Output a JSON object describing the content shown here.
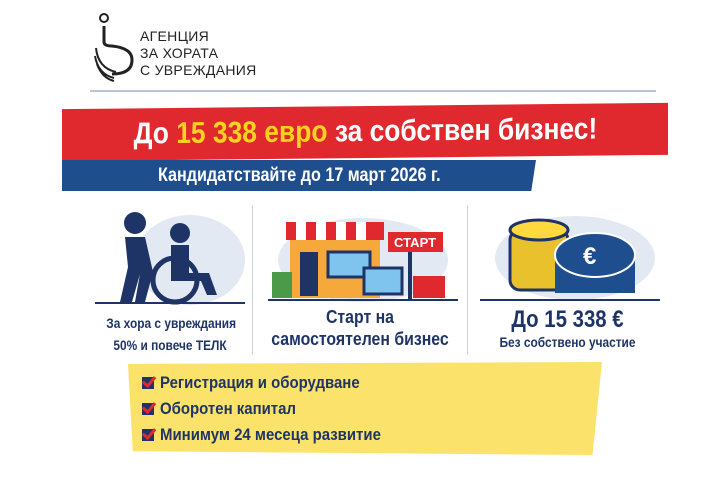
{
  "logo": {
    "lines": [
      "АГЕНЦИЯ",
      "ЗА ХОРАТА",
      "С УВРЕЖДАНИЯ"
    ]
  },
  "headline": {
    "prefix": "До",
    "amount": "15 338 евро",
    "suffix": "за собствен бизнес!"
  },
  "deadline": "Кандидатствайте до 17 март 2026 г.",
  "features": [
    {
      "icon": "people-wheelchair-icon",
      "lines": [
        "За хора с увреждания",
        "50% и повече ТЕЛК"
      ]
    },
    {
      "icon": "shop-start-icon",
      "sign": "СТАРТ",
      "lines": [
        "Старт на",
        "самостоятелен бизнес"
      ]
    },
    {
      "icon": "euro-coins-icon",
      "title": "До 15 338 €",
      "subtitle": "Без собствено участие"
    }
  ],
  "checklist": [
    "Регистрация и оборудване",
    "Оборотен капитал",
    "Минимум 24 месеца развитие"
  ],
  "colors": {
    "red": "#e0292f",
    "blue": "#1f4e8f",
    "yellow": "#fbe36b",
    "navy": "#1f3466",
    "gold": "#ffd21f"
  }
}
